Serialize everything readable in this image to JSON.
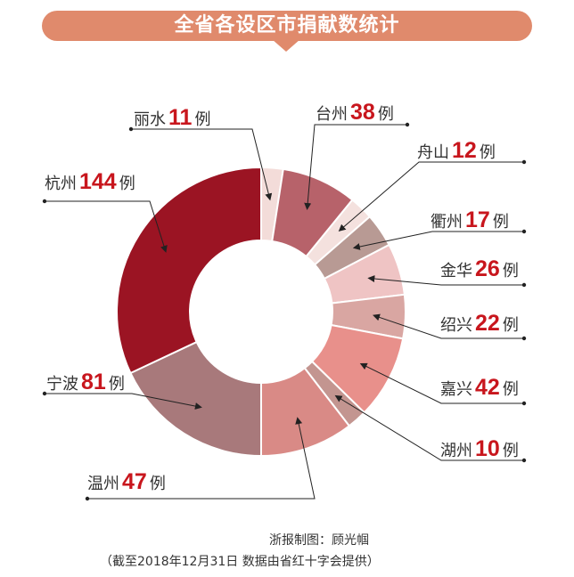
{
  "title": "全省各设区市捐献数统计",
  "credit": "浙报制图：顾光帼",
  "note": "（截至2018年12月31日  数据由省红十字会提供）",
  "unit": "例",
  "chart_data": {
    "type": "donut",
    "title": "全省各设区市捐献数统计",
    "slices": [
      {
        "name": "丽水",
        "value": 11,
        "color": "#f3dcd9"
      },
      {
        "name": "台州",
        "value": 38,
        "color": "#b7626a"
      },
      {
        "name": "舟山",
        "value": 12,
        "color": "#f4e1de"
      },
      {
        "name": "衢州",
        "value": 17,
        "color": "#b89a94"
      },
      {
        "name": "金华",
        "value": 26,
        "color": "#efc4c4"
      },
      {
        "name": "绍兴",
        "value": 22,
        "color": "#d9a6a2"
      },
      {
        "name": "嘉兴",
        "value": 42,
        "color": "#e8908b"
      },
      {
        "name": "湖州",
        "value": 10,
        "color": "#c39590"
      },
      {
        "name": "温州",
        "value": 47,
        "color": "#d98a86"
      },
      {
        "name": "宁波",
        "value": 81,
        "color": "#a8797b"
      },
      {
        "name": "杭州",
        "value": 144,
        "color": "#9b1423"
      }
    ]
  }
}
